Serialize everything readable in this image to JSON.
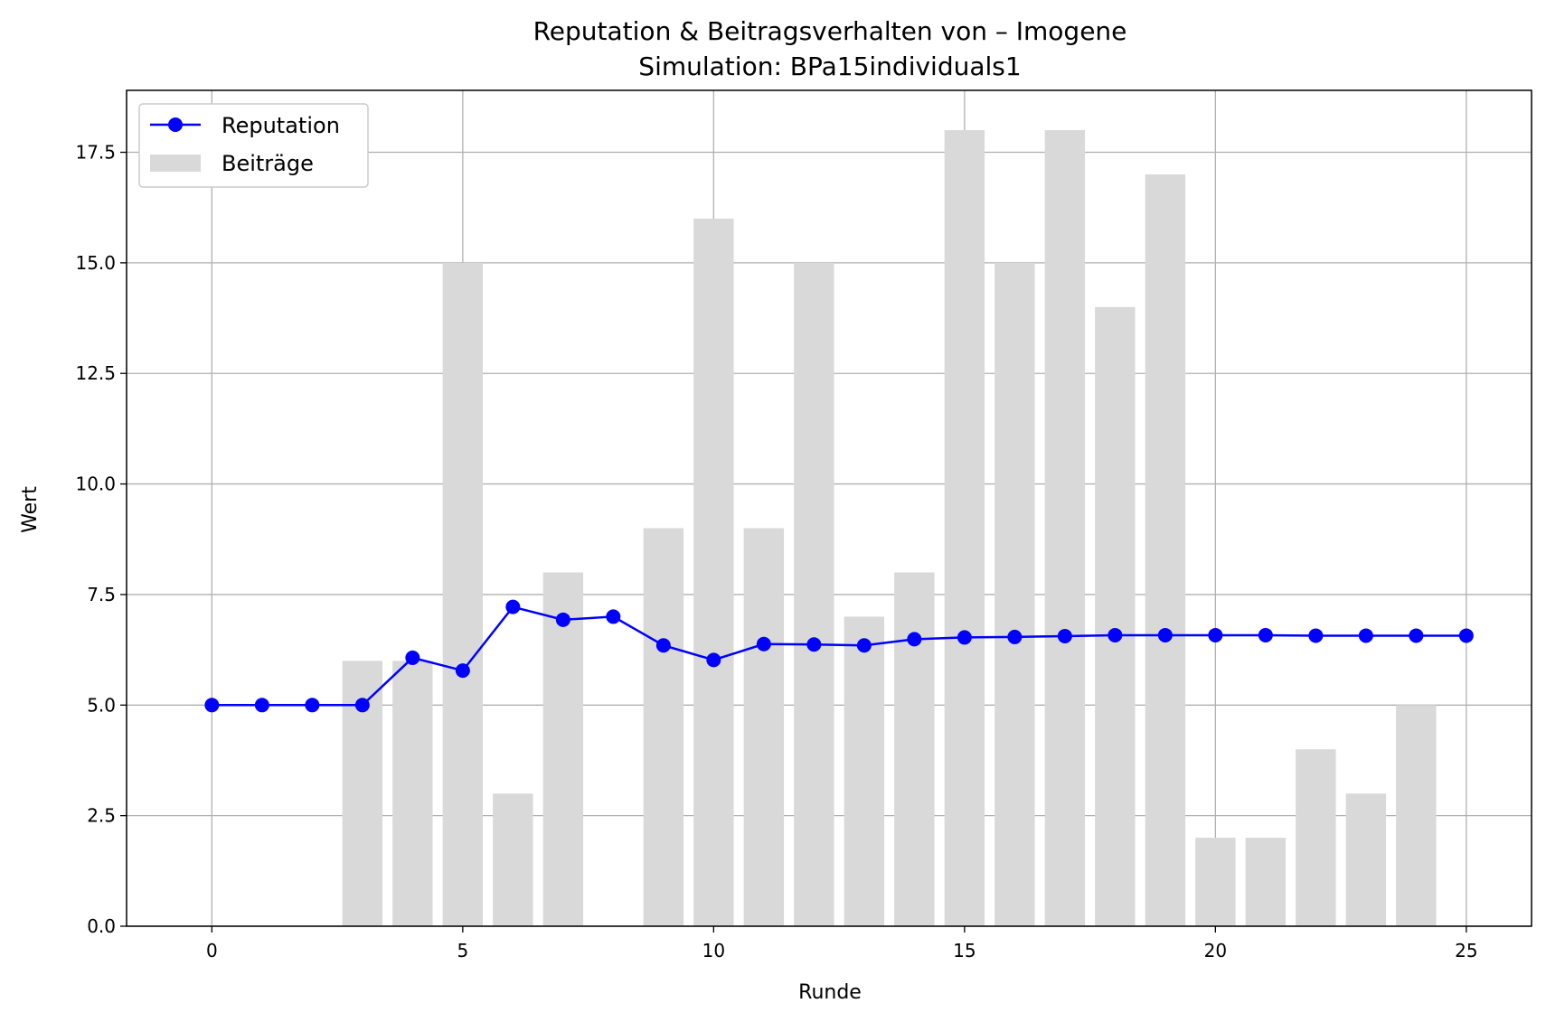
{
  "chart_data": {
    "type": "bar+line",
    "title": "Reputation & Beitragsverhalten von – Imogene",
    "subtitle": "Simulation: BPa15individuals1",
    "xlabel": "Runde",
    "ylabel": "Wert",
    "xlim": [
      -1.7,
      26.3
    ],
    "ylim": [
      0,
      18.9
    ],
    "x_ticks": [
      0,
      5,
      10,
      15,
      20,
      25
    ],
    "y_ticks": [
      0.0,
      2.5,
      5.0,
      7.5,
      10.0,
      12.5,
      15.0,
      17.5
    ],
    "grid": true,
    "legend_position": "top-left",
    "series": [
      {
        "name": "Reputation",
        "kind": "line",
        "color": "#0000ff",
        "x": [
          0,
          1,
          2,
          3,
          4,
          5,
          6,
          7,
          8,
          9,
          10,
          11,
          12,
          13,
          14,
          15,
          16,
          17,
          18,
          19,
          20,
          21,
          22,
          23,
          24,
          25
        ],
        "values": [
          5.0,
          5.0,
          5.0,
          5.0,
          6.07,
          5.78,
          7.22,
          6.93,
          7.0,
          6.35,
          6.02,
          6.38,
          6.37,
          6.35,
          6.49,
          6.53,
          6.54,
          6.56,
          6.58,
          6.58,
          6.58,
          6.58,
          6.57,
          6.57,
          6.57,
          6.57
        ]
      },
      {
        "name": "Beiträge",
        "kind": "bar",
        "color": "#d9d9d9",
        "x": [
          0,
          1,
          2,
          3,
          4,
          5,
          6,
          7,
          8,
          9,
          10,
          11,
          12,
          13,
          14,
          15,
          16,
          17,
          18,
          19,
          20,
          21,
          22,
          23,
          24
        ],
        "values": [
          0,
          0,
          0,
          6,
          6,
          15,
          3,
          8,
          0,
          9,
          16,
          9,
          15,
          7,
          8,
          18,
          15,
          18,
          14,
          17,
          2,
          2,
          4,
          3,
          5
        ]
      }
    ]
  }
}
